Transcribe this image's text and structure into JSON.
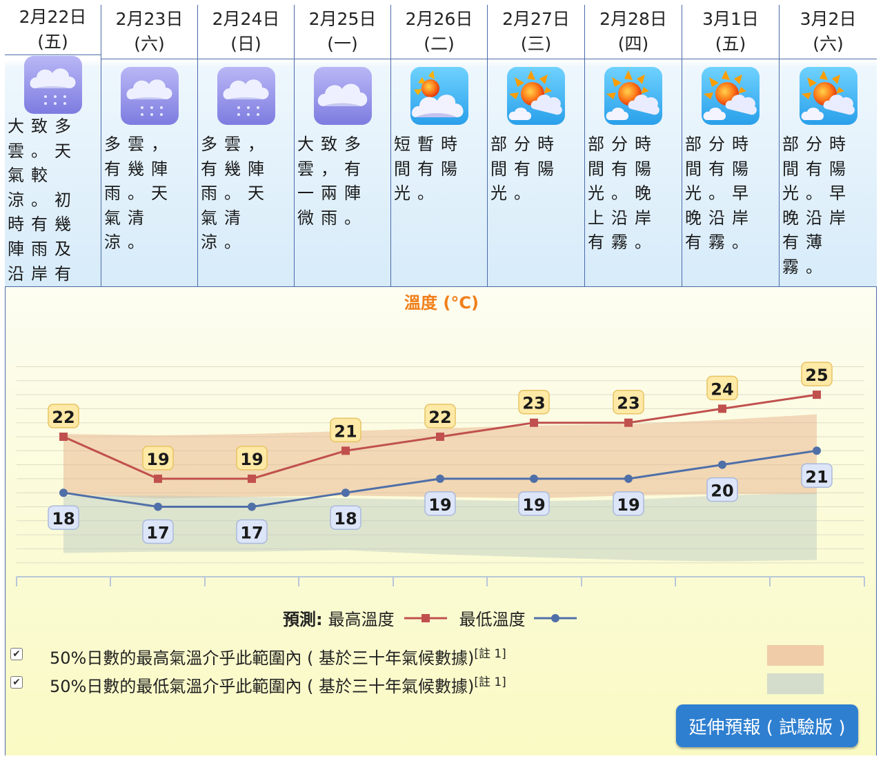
{
  "days": [
    {
      "date": "2月22日",
      "weekday": "(五)",
      "icon": "cloudy-rain-icon",
      "desc": "大致多雲。天氣較涼。初時有幾陣雨及沿岸有霧。"
    },
    {
      "date": "2月23日",
      "weekday": "(六)",
      "icon": "cloudy-rain-icon",
      "desc": "多雲，有幾陣雨。天氣清涼。"
    },
    {
      "date": "2月24日",
      "weekday": "(日)",
      "icon": "cloudy-rain-icon",
      "desc": "多雲，有幾陣雨。天氣清涼。"
    },
    {
      "date": "2月25日",
      "weekday": "(一)",
      "icon": "cloudy-icon",
      "desc": "大致多雲，有一兩陣微雨。"
    },
    {
      "date": "2月26日",
      "weekday": "(二)",
      "icon": "sunny-intervals-icon",
      "desc": "短暫時間有陽光。"
    },
    {
      "date": "2月27日",
      "weekday": "(三)",
      "icon": "sunny-periods-icon",
      "desc": "部分時間有陽光。"
    },
    {
      "date": "2月28日",
      "weekday": "(四)",
      "icon": "sunny-periods-icon",
      "desc": "部分時間有陽光。晚上沿岸有霧。"
    },
    {
      "date": "3月1日",
      "weekday": "(五)",
      "icon": "sunny-periods-icon",
      "desc": "部分時間有陽光。早晚沿岸有霧。"
    },
    {
      "date": "3月2日",
      "weekday": "(六)",
      "icon": "sunny-periods-icon",
      "desc": "部分時間有陽光。早晚沿岸有薄霧。"
    }
  ],
  "chart_data": {
    "type": "line",
    "title": "溫度 (°C)",
    "ylim": [
      8,
      27
    ],
    "series": [
      {
        "name": "最高溫度",
        "color": "#c0504d",
        "values": [
          22,
          19,
          19,
          21,
          22,
          23,
          23,
          24,
          25
        ]
      },
      {
        "name": "最低溫度",
        "color": "#4f6fa8",
        "values": [
          18,
          17,
          17,
          18,
          19,
          19,
          19,
          20,
          21
        ]
      }
    ],
    "bands": [
      {
        "name": "50%日數的最高氣溫介乎此範圍內",
        "color": "#e8b48c",
        "upper": [
          22.2,
          22.1,
          22.2,
          22.4,
          22.6,
          22.8,
          22.9,
          23.2,
          23.6
        ],
        "lower": [
          17.9,
          17.6,
          17.7,
          17.8,
          17.7,
          17.6,
          17.8,
          17.9,
          17.9
        ]
      },
      {
        "name": "50%日數的最低氣溫介乎此範圍內",
        "color": "#b9c8c0",
        "upper": [
          17.8,
          17.8,
          17.7,
          17.6,
          17.5,
          17.4,
          17.5,
          17.8,
          18.0
        ],
        "lower": [
          13.7,
          13.8,
          13.8,
          13.9,
          13.6,
          13.4,
          13.2,
          13.1,
          13.2
        ]
      }
    ],
    "grid": true
  },
  "legend": {
    "forecast_label": "預測:",
    "max_label": "最高溫度",
    "min_label": "最低溫度"
  },
  "ranges": [
    {
      "text": "50%日數的最高氣溫介乎此範圍內 ( 基於三十年氣候數據)",
      "note": "[註 1]",
      "checked": true
    },
    {
      "text": "50%日數的最低氣溫介乎此範圍內 ( 基於三十年氣候數據)",
      "note": "[註 1]",
      "checked": true
    }
  ],
  "extended_button": "延伸預報 ( 試驗版 )"
}
